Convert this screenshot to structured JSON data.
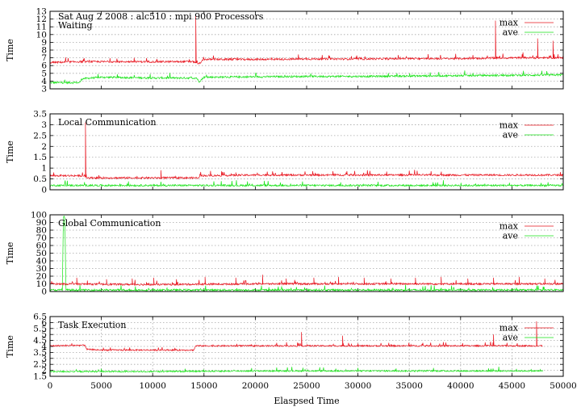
{
  "figure_title": "Sat Aug 2 2008 : alc510 : mpi 900 Processors",
  "x_axis": {
    "label": "Elaspsed Time",
    "range": [
      0,
      50000
    ],
    "ticks": [
      0,
      5000,
      10000,
      15000,
      20000,
      25000,
      30000,
      35000,
      40000,
      45000,
      50000
    ]
  },
  "colors": {
    "max": "#e8141e",
    "ave": "#16e216",
    "grid": "#a8a8a8"
  },
  "chart_data": [
    {
      "type": "line",
      "title": "Waiting",
      "ylabel": "Time",
      "ylim": [
        3,
        13
      ],
      "yticks": [
        3,
        4,
        5,
        6,
        7,
        8,
        9,
        10,
        11,
        12,
        13
      ],
      "grid": "horizontal dotted",
      "legend": "top-right",
      "series": [
        {
          "name": "max",
          "x": [
            0,
            3000,
            5000,
            10000,
            14000,
            14500,
            15000,
            20000,
            25000,
            30000,
            35000,
            40000,
            45000,
            50000
          ],
          "values": [
            6.4,
            6.5,
            6.5,
            6.5,
            6.5,
            6.2,
            6.8,
            6.8,
            6.85,
            6.85,
            6.9,
            6.9,
            7.0,
            7.0
          ],
          "spikes": [
            [
              14200,
              12.4
            ],
            [
              43400,
              11.8
            ],
            [
              47500,
              9.5
            ],
            [
              49000,
              9.2
            ]
          ]
        },
        {
          "name": "ave",
          "x": [
            0,
            2900,
            3100,
            5000,
            10000,
            14300,
            14500,
            15000,
            20000,
            25000,
            30000,
            35000,
            40000,
            45000,
            50000
          ],
          "values": [
            3.8,
            3.8,
            4.3,
            4.5,
            4.4,
            4.4,
            3.9,
            4.5,
            4.55,
            4.6,
            4.6,
            4.65,
            4.7,
            4.75,
            4.8
          ]
        }
      ]
    },
    {
      "type": "line",
      "title": "Local Communication",
      "ylabel": "Time",
      "ylim": [
        0,
        3.5
      ],
      "yticks": [
        0,
        0.5,
        1,
        1.5,
        2,
        2.5,
        3,
        3.5
      ],
      "grid": "horizontal dotted",
      "legend": "top-right",
      "series": [
        {
          "name": "max",
          "x": [
            0,
            3400,
            3500,
            10000,
            14500,
            14600,
            20000,
            30000,
            40000,
            50000
          ],
          "values": [
            0.65,
            0.65,
            0.55,
            0.55,
            0.55,
            0.65,
            0.68,
            0.68,
            0.68,
            0.68
          ],
          "spikes": [
            [
              3450,
              3.1
            ],
            [
              10800,
              0.9
            ],
            [
              18100,
              0.8
            ]
          ]
        },
        {
          "name": "ave",
          "x": [
            0,
            3450,
            3500,
            50000
          ],
          "values": [
            0.2,
            0.2,
            0.2,
            0.2
          ]
        }
      ]
    },
    {
      "type": "line",
      "title": "Global Communication",
      "ylabel": "Time",
      "ylim": [
        0,
        100
      ],
      "yticks": [
        0,
        10,
        20,
        30,
        40,
        50,
        60,
        70,
        80,
        90,
        100
      ],
      "grid": "horizontal dotted",
      "legend": "top-right",
      "series": [
        {
          "name": "max",
          "x": [
            0,
            10000,
            20000,
            30000,
            40000,
            50000
          ],
          "values": [
            10,
            9,
            10,
            10,
            10,
            10
          ],
          "spikes": [
            [
              2600,
              18
            ],
            [
              5500,
              16
            ],
            [
              8000,
              17
            ],
            [
              10100,
              18
            ],
            [
              15100,
              19
            ],
            [
              18100,
              18
            ],
            [
              20700,
              22
            ],
            [
              23000,
              17
            ],
            [
              25700,
              18
            ],
            [
              28100,
              19
            ],
            [
              30600,
              18
            ],
            [
              33200,
              17
            ],
            [
              35600,
              18
            ],
            [
              38100,
              19
            ],
            [
              40700,
              17
            ],
            [
              43200,
              18
            ],
            [
              45700,
              19
            ],
            [
              48200,
              17
            ]
          ]
        },
        {
          "name": "ave",
          "x": [
            0,
            1200,
            1300,
            1450,
            1550,
            2000,
            50000
          ],
          "values": [
            2,
            2,
            98,
            96,
            2,
            2,
            2
          ]
        }
      ]
    },
    {
      "type": "line",
      "title": "Task Execution",
      "ylabel": "Time",
      "ylim": [
        1.5,
        6.5
      ],
      "yticks": [
        1.5,
        2,
        2.5,
        3,
        3.5,
        4,
        4.5,
        5,
        5.5,
        6,
        6.5
      ],
      "grid": "dotted",
      "legend": "top-right",
      "series": [
        {
          "name": "max",
          "x": [
            0,
            3400,
            3600,
            5000,
            10000,
            14000,
            14200,
            20000,
            30000,
            40000,
            48000
          ],
          "values": [
            4.05,
            4.1,
            3.75,
            3.7,
            3.7,
            3.7,
            4.05,
            4.05,
            4.05,
            4.05,
            4.05
          ],
          "spikes": [
            [
              24500,
              5.2
            ],
            [
              28500,
              4.9
            ],
            [
              43200,
              5.0
            ],
            [
              47400,
              6.1
            ]
          ]
        },
        {
          "name": "ave",
          "x": [
            0,
            10000,
            20000,
            30000,
            40000,
            48000
          ],
          "values": [
            1.9,
            1.9,
            1.95,
            1.95,
            1.95,
            1.95
          ]
        }
      ]
    }
  ]
}
